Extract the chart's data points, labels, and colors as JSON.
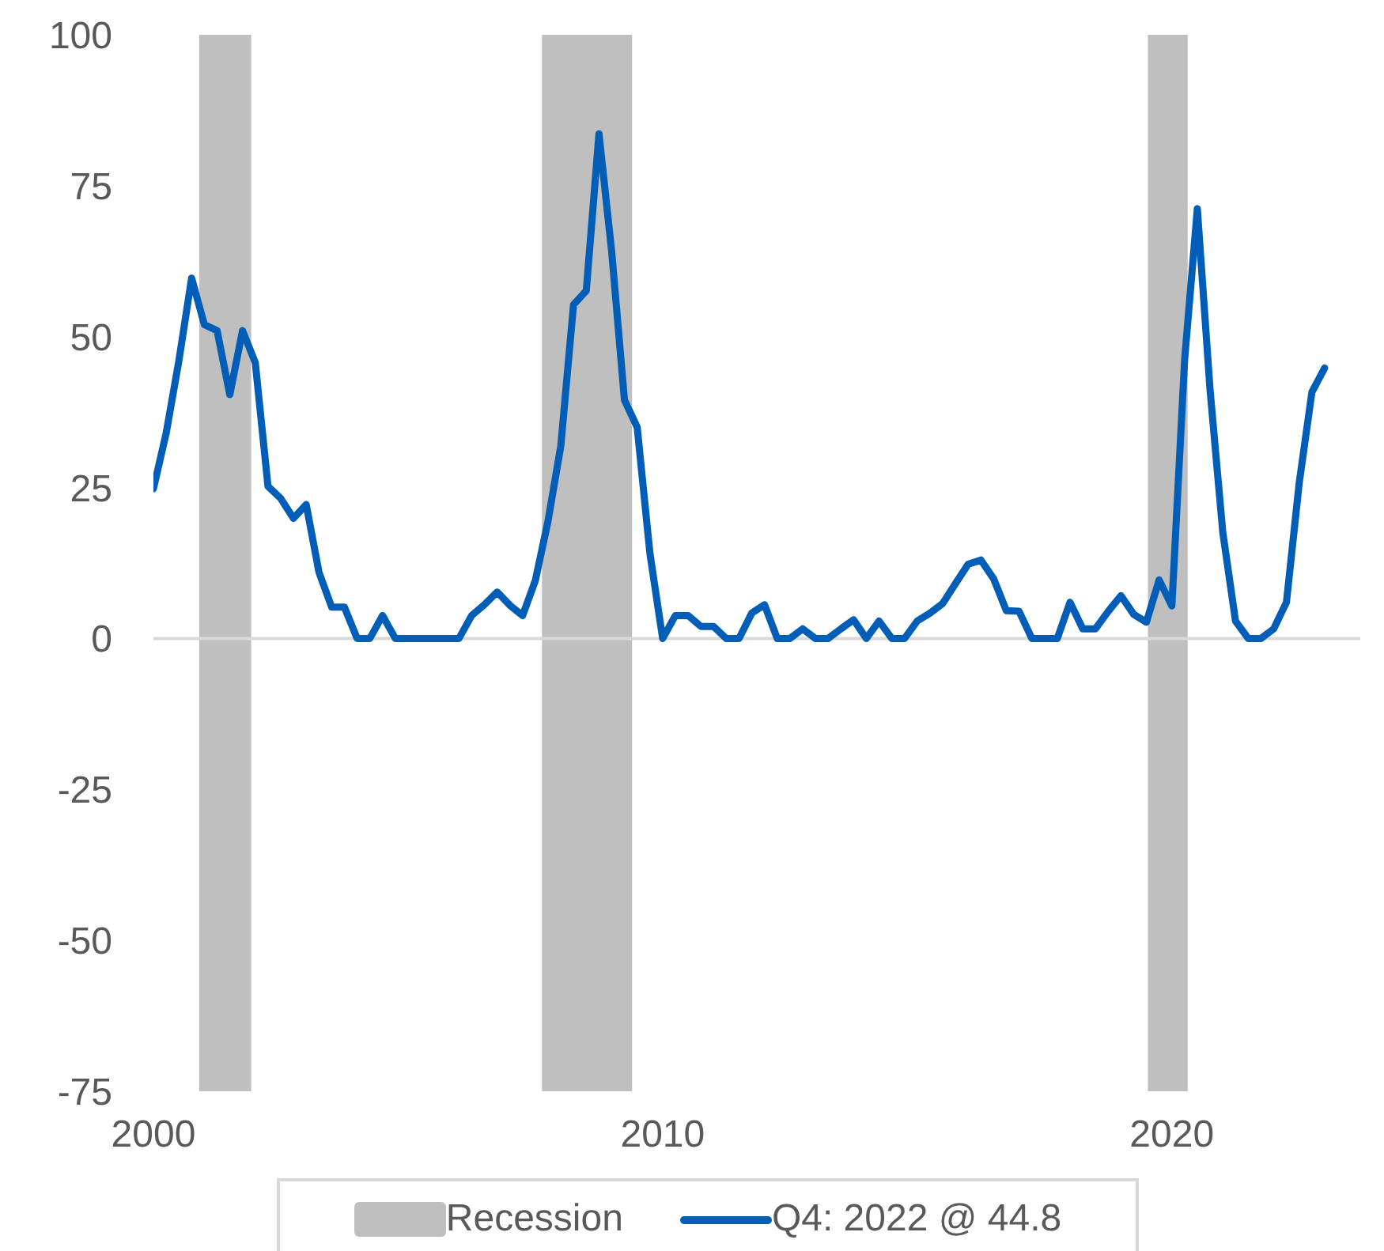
{
  "chart_data": {
    "type": "line",
    "x": [
      2000,
      2000.25,
      2000.5,
      2000.75,
      2001,
      2001.25,
      2001.5,
      2001.75,
      2002,
      2002.25,
      2002.5,
      2002.75,
      2003,
      2003.25,
      2003.5,
      2003.75,
      2004,
      2004.25,
      2004.5,
      2004.75,
      2005,
      2005.25,
      2005.5,
      2005.75,
      2006,
      2006.25,
      2006.5,
      2006.75,
      2007,
      2007.25,
      2007.5,
      2007.75,
      2008,
      2008.25,
      2008.5,
      2008.75,
      2009,
      2009.25,
      2009.5,
      2009.75,
      2010,
      2010.25,
      2010.5,
      2010.75,
      2011,
      2011.25,
      2011.5,
      2011.75,
      2012,
      2012.25,
      2012.5,
      2012.75,
      2013,
      2013.25,
      2013.5,
      2013.75,
      2014,
      2014.25,
      2014.5,
      2014.75,
      2015,
      2015.25,
      2015.5,
      2015.75,
      2016,
      2016.25,
      2016.5,
      2016.75,
      2017,
      2017.25,
      2017.5,
      2017.75,
      2018,
      2018.25,
      2018.5,
      2018.75,
      2019,
      2019.25,
      2019.5,
      2019.75,
      2020,
      2020.25,
      2020.5,
      2020.75,
      2021,
      2021.25,
      2021.5,
      2021.75,
      2022,
      2022.25,
      2022.5,
      2022.75,
      2023
    ],
    "series": [
      {
        "name": "Q4: 2022 @ 44.8",
        "color": "#005eb8",
        "values": [
          24.8,
          34,
          46,
          59.7,
          52,
          51,
          40.4,
          51,
          45.7,
          25.2,
          23.2,
          19.9,
          22.2,
          11,
          5.2,
          5.2,
          0,
          0,
          3.8,
          0,
          0,
          0,
          0,
          0,
          0,
          3.8,
          5.6,
          7.7,
          5.5,
          3.8,
          9.6,
          19.5,
          31.9,
          55.3,
          57.6,
          83.6,
          64,
          39.5,
          35,
          14.1,
          0,
          3.8,
          3.8,
          2,
          2,
          0,
          0,
          4.2,
          5.6,
          0,
          0,
          1.6,
          0,
          0,
          1.6,
          3.1,
          0,
          2.9,
          0,
          0,
          2.9,
          4.2,
          5.8,
          9.1,
          12.3,
          13,
          9.9,
          4.6,
          4.5,
          0,
          0,
          0,
          6,
          1.6,
          1.6,
          4.5,
          7.1,
          4,
          2.7,
          9.7,
          5.4,
          46.1,
          71.2,
          41.2,
          17.6,
          2.9,
          0,
          0,
          1.6,
          6,
          25.7,
          40.8,
          44.8
        ]
      }
    ],
    "xlim": [
      2000,
      2023.7
    ],
    "xticks": [
      2000,
      2010,
      2020
    ],
    "ylim": [
      -75,
      100
    ],
    "yticks": [
      -75,
      -50,
      -25,
      0,
      25,
      50,
      75,
      100
    ],
    "bands": [
      {
        "axis": "x",
        "from": 2000.9,
        "to": 2001.92,
        "label": "Recession",
        "color": "#bfbfbf"
      },
      {
        "axis": "x",
        "from": 2007.63,
        "to": 2009.4,
        "color": "#bfbfbf"
      },
      {
        "axis": "x",
        "from": 2019.53,
        "to": 2020.31,
        "color": "#bfbfbf"
      }
    ],
    "ref_lines": [
      {
        "axis": "y",
        "value": 0,
        "color": "#d9d9d9"
      }
    ],
    "grid": false,
    "legend": "bottom",
    "marker": "none",
    "line_style": "solid"
  }
}
